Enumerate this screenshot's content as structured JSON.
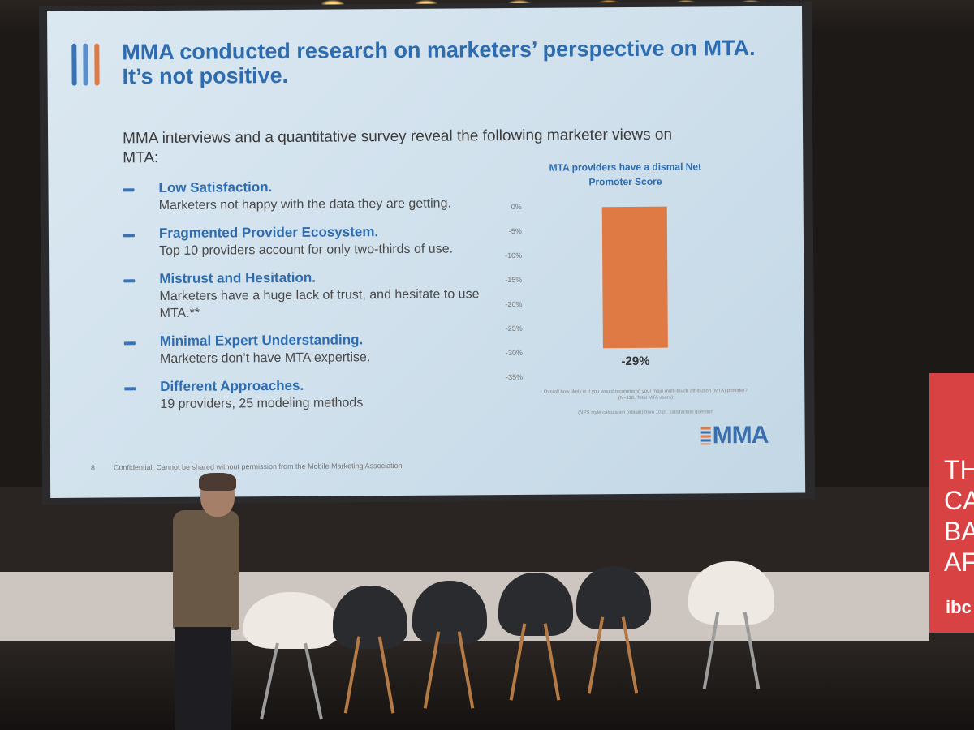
{
  "slide": {
    "title": "MMA conducted research on marketers’ perspective on MTA. It’s not positive.",
    "intro": "MMA interviews and a quantitative survey reveal the following marketer views on MTA:",
    "bullets": [
      {
        "head": "Low Satisfaction.",
        "body": "Marketers not happy with the data they are getting."
      },
      {
        "head": "Fragmented Provider Ecosystem.",
        "body": "Top 10 providers account for only two-thirds of use."
      },
      {
        "head": "Mistrust and Hesitation.",
        "body": "Marketers have a huge lack of trust, and hesitate to use MTA.**"
      },
      {
        "head": "Minimal Expert Understanding.",
        "body": "Marketers don’t have MTA expertise."
      },
      {
        "head": "Different Approaches.",
        "body": "19 providers, 25 modeling methods"
      }
    ],
    "page_number": "8",
    "confidential": "Confidential: Cannot be shared without permission from the Mobile Marketing Association",
    "brand": "MMA",
    "colors": {
      "title_blue": "#2e6cb0",
      "bar_orange": "#e07a45",
      "logo_bar_1": "#3773b5",
      "logo_bar_2": "#5a8fca",
      "logo_bar_3": "#e07a45"
    }
  },
  "chart_data": {
    "type": "bar",
    "title": "MTA providers have a dismal Net Promoter Score",
    "categories": [
      ""
    ],
    "values": [
      -29
    ],
    "value_label": "-29%",
    "ylim": [
      -35,
      0
    ],
    "yticks": [
      "0%",
      "-5%",
      "-10%",
      "-15%",
      "-20%",
      "-25%",
      "-30%",
      "-35%"
    ],
    "footnotes": [
      "Overall how likely is it you would recommend your main multi-touch attribution (MTA) provider? (N=118, Total MTA users)",
      "(NPS style calculation (obtain) from 10 pt. satisfaction question"
    ]
  },
  "venue": {
    "banner_text": [
      "TH",
      "CA",
      "BA",
      "AF"
    ],
    "banner_brand": "ibc"
  }
}
